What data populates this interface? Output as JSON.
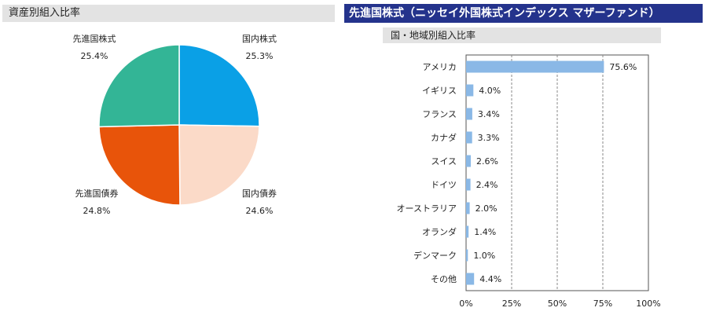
{
  "left_panel": {
    "title": "資産別組入比率"
  },
  "right_panel": {
    "banner": "先進国株式（ニッセイ外国株式インデックス マザーファンド）",
    "subtitle": "国・地域別組入比率"
  },
  "chart_data": [
    {
      "type": "pie",
      "title": "資産別組入比率",
      "slices": [
        {
          "label": "国内株式",
          "value": 25.3,
          "display": "25.3%",
          "color": "#0aa0e6"
        },
        {
          "label": "国内債券",
          "value": 24.6,
          "display": "24.6%",
          "color": "#fbdac8"
        },
        {
          "label": "先進国債券",
          "value": 24.8,
          "display": "24.8%",
          "color": "#e8540a"
        },
        {
          "label": "先進国株式",
          "value": 25.4,
          "display": "25.4%",
          "color": "#33b596"
        }
      ]
    },
    {
      "type": "bar",
      "orientation": "horizontal",
      "title": "国・地域別組入比率",
      "categories": [
        "アメリカ",
        "イギリス",
        "フランス",
        "カナダ",
        "スイス",
        "ドイツ",
        "オーストラリア",
        "オランダ",
        "デンマーク",
        "その他"
      ],
      "values": [
        75.6,
        4.0,
        3.4,
        3.3,
        2.6,
        2.4,
        2.0,
        1.4,
        1.0,
        4.4
      ],
      "value_labels": [
        "75.6%",
        "4.0%",
        "3.4%",
        "3.3%",
        "2.6%",
        "2.4%",
        "2.0%",
        "1.4%",
        "1.0%",
        "4.4%"
      ],
      "xlim": [
        0,
        100
      ],
      "xticks": [
        0,
        25,
        50,
        75,
        100
      ],
      "xtick_labels": [
        "0%",
        "25%",
        "50%",
        "75%",
        "100%"
      ],
      "grid": "vertical dashed",
      "bar_color": "#8ab8e6"
    }
  ]
}
